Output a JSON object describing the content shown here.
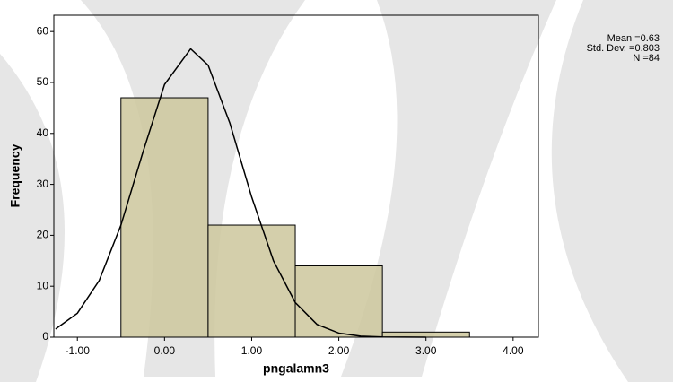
{
  "chart_data": {
    "type": "histogram",
    "x_label": "pngalamn3",
    "y_label": "Frequency",
    "bins": [
      -0.5,
      0.5,
      1.5,
      2.5,
      3.5
    ],
    "values": [
      47,
      22,
      14,
      1
    ],
    "color": "#cdc79c",
    "curve": {
      "x": [
        -1.25,
        -1.0,
        -0.75,
        -0.5,
        -0.25,
        0,
        0.3,
        0.5,
        0.75,
        1.0,
        1.25,
        1.5,
        1.75,
        2.0,
        2.25,
        2.5,
        3.0
      ],
      "y": [
        1.6,
        4.7,
        11.1,
        22.0,
        36.2,
        49.6,
        56.6,
        53.4,
        42.0,
        27.5,
        15.0,
        6.8,
        2.5,
        0.8,
        0.2,
        0.05,
        0
      ]
    },
    "stats": [
      "Mean =0.63",
      "Std. Dev. =0.803",
      "N =84"
    ],
    "xlim": [
      -1.27,
      4.29
    ],
    "ylim": [
      0,
      63.2
    ],
    "xticks": [
      {
        "value": -1,
        "label": "-1.00"
      },
      {
        "value": 0,
        "label": "0.00"
      },
      {
        "value": 1,
        "label": "1.00"
      },
      {
        "value": 2,
        "label": "2.00"
      },
      {
        "value": 3,
        "label": "3.00"
      },
      {
        "value": 4,
        "label": "4.00"
      }
    ],
    "yticks": [
      0,
      10,
      20,
      30,
      40,
      50,
      60
    ]
  }
}
